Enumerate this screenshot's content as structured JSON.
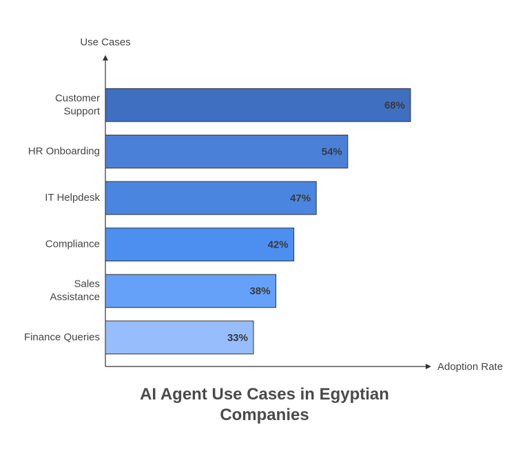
{
  "chart_data": {
    "type": "bar",
    "orientation": "horizontal",
    "title": "AI Agent Use Cases in Egyptian Companies",
    "y_label": "Use Cases",
    "x_label": "Adoption Rate",
    "categories": [
      "Customer Support",
      "HR Onboarding",
      "IT Helpdesk",
      "Compliance",
      "Sales Assistance",
      "Finance Queries"
    ],
    "values": [
      68,
      54,
      47,
      42,
      38,
      33
    ],
    "value_labels": [
      "68%",
      "54%",
      "47%",
      "42%",
      "38%",
      "33%"
    ],
    "colors": [
      "#3f6fc0",
      "#4a80d8",
      "#4a86e0",
      "#4d8ff0",
      "#65a1f8",
      "#97bdfc"
    ]
  }
}
